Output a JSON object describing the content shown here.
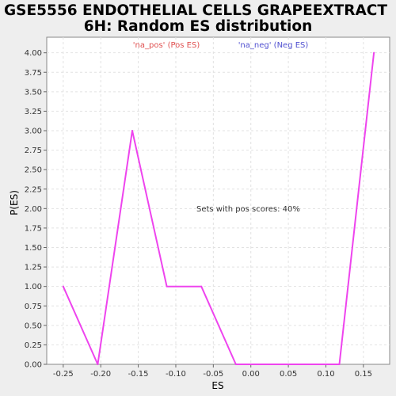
{
  "chart_data": {
    "type": "line",
    "title_lines": [
      "GSE5556 ENDOTHELIAL CELLS GRAPEEXTRACT",
      "6H: Random ES distribution"
    ],
    "xlabel": "ES",
    "ylabel": "P(ES)",
    "xlim": [
      -0.272,
      0.185
    ],
    "ylim": [
      0,
      4.2
    ],
    "x_ticks": [
      -0.25,
      -0.2,
      -0.15,
      -0.1,
      -0.05,
      0.0,
      0.05,
      0.1,
      0.15
    ],
    "x_tick_labels": [
      "-0.25",
      "-0.20",
      "-0.15",
      "-0.10",
      "-0.05",
      "0.00",
      "0.05",
      "0.10",
      "0.15"
    ],
    "y_ticks": [
      0,
      0.25,
      0.5,
      0.75,
      1.0,
      1.25,
      1.5,
      1.75,
      2.0,
      2.25,
      2.5,
      2.75,
      3.0,
      3.25,
      3.5,
      3.75,
      4.0
    ],
    "y_tick_labels": [
      "0.00",
      "0.25",
      "0.50",
      "0.75",
      "1.00",
      "1.25",
      "1.50",
      "1.75",
      "2.00",
      "2.25",
      "2.50",
      "2.75",
      "3.00",
      "3.25",
      "3.50",
      "3.75",
      "4.00"
    ],
    "grid": true,
    "legend": [
      {
        "label": "'na_pos' (Pos ES)",
        "color": "#e05050"
      },
      {
        "label": "'na_neg' (Neg ES)",
        "color": "#5050d0"
      }
    ],
    "annotation": "Sets with pos scores: 40%",
    "series": [
      {
        "color": "#ee44ee",
        "points": [
          [
            -0.25,
            1.0
          ],
          [
            -0.204,
            0.0
          ],
          [
            -0.158,
            3.0
          ],
          [
            -0.112,
            1.0
          ],
          [
            -0.066,
            1.0
          ],
          [
            -0.02,
            0.0
          ],
          [
            0.026,
            0.0
          ],
          [
            0.072,
            0.0
          ],
          [
            0.118,
            0.0
          ],
          [
            0.164,
            4.0
          ]
        ]
      }
    ]
  }
}
